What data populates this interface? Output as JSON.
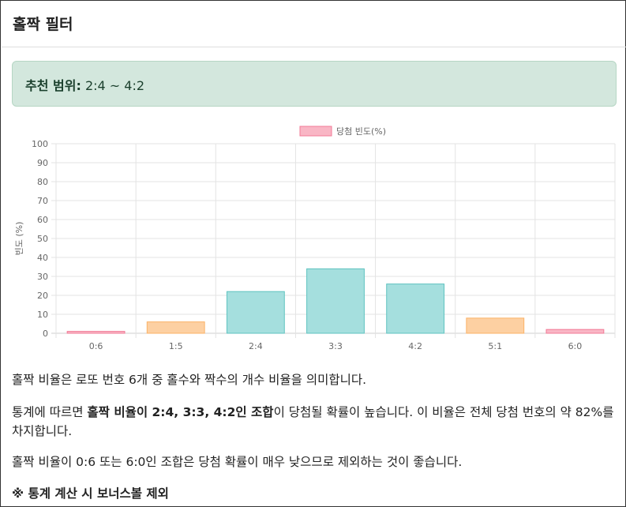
{
  "header": {
    "title": "홀짝 필터"
  },
  "recommendation": {
    "label": "추천 범위:",
    "value": "2:4 ~ 4:2"
  },
  "colors": {
    "pink": "#f7a1b5",
    "orange": "#fdcf9a",
    "teal": "#a2dedc"
  },
  "chart_data": {
    "type": "bar",
    "categories": [
      "0:6",
      "1:5",
      "2:4",
      "3:3",
      "4:2",
      "5:1",
      "6:0"
    ],
    "series": [
      {
        "name": "당첨 빈도(%)",
        "values": [
          1,
          6,
          22,
          34,
          26,
          8,
          2
        ],
        "colors": [
          "pink",
          "orange",
          "teal",
          "teal",
          "teal",
          "orange",
          "pink"
        ]
      }
    ],
    "ylabel": "빈도 (%)",
    "xlabel": "",
    "ylim": [
      0,
      100
    ],
    "yticks": [
      "0",
      "10",
      "20",
      "30",
      "40",
      "50",
      "60",
      "70",
      "80",
      "90",
      "100"
    ],
    "grid": true,
    "legend": "top-center"
  },
  "description": {
    "p1": "홀짝 비율은 로또 번호 6개 중 홀수와 짝수의 개수 비율을 의미합니다.",
    "p2_prefix": "통계에 따르면 ",
    "p2_bold": "홀짝 비율이 2:4, 3:3, 4:2인 조합",
    "p2_suffix": "이 당첨될 확률이 높습니다. 이 비율은 전체 당첨 번호의 약 82%를 차지합니다.",
    "p3": "홀짝 비율이 0:6 또는 6:0인 조합은 당첨 확률이 매우 낮으므로 제외하는 것이 좋습니다.",
    "p4": "※ 통계 계산 시 보너스볼 제외"
  }
}
